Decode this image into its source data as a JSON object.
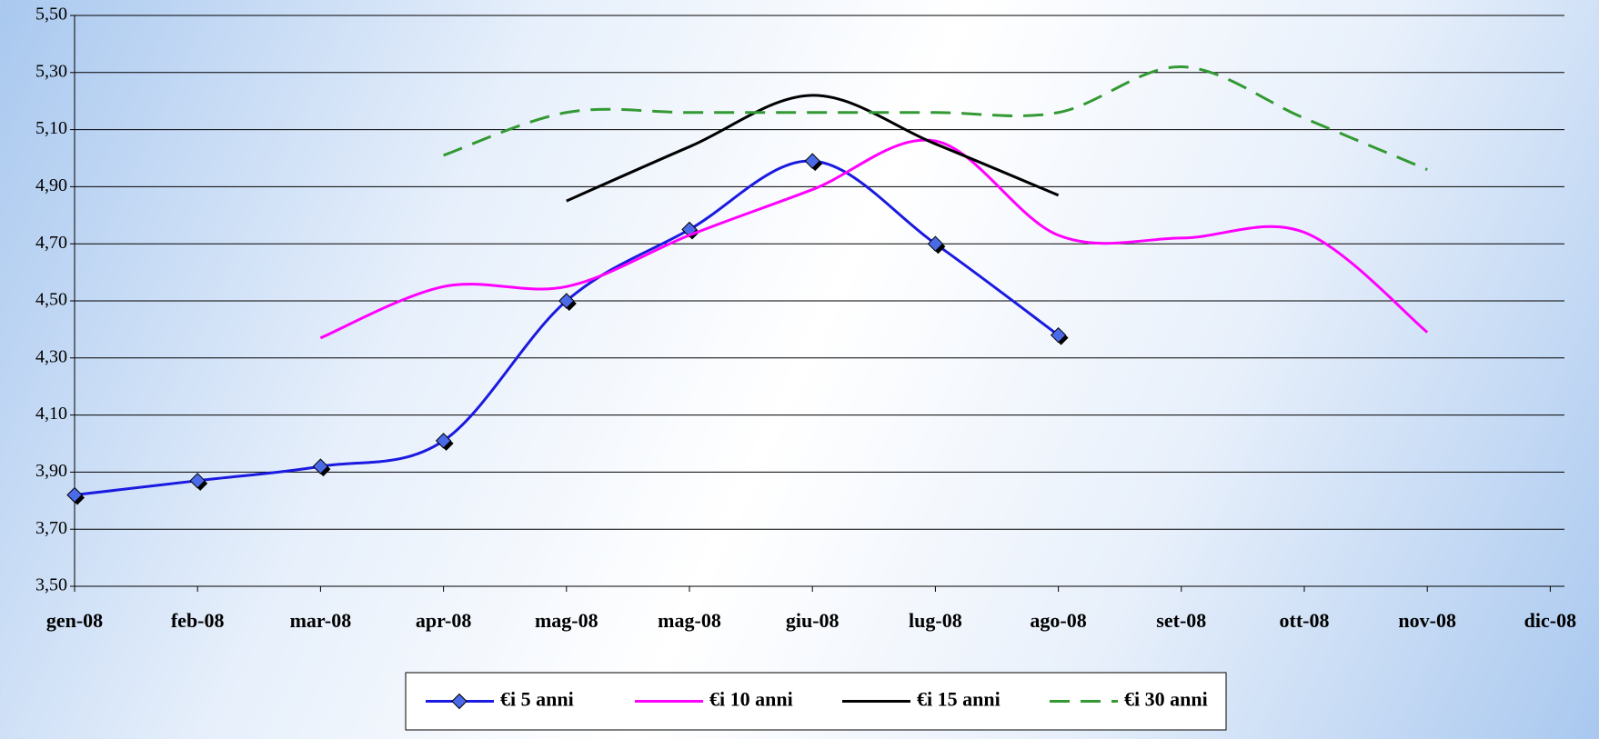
{
  "chart_data": {
    "type": "line",
    "categories": [
      "gen-08",
      "feb-08",
      "mar-08",
      "apr-08",
      "mag-08",
      "mag-08",
      "giu-08",
      "lug-08",
      "ago-08",
      "set-08",
      "ott-08",
      "nov-08",
      "dic-08"
    ],
    "ylim": [
      3.5,
      5.5
    ],
    "yticks": [
      {
        "value": 3.5,
        "label": "3,50"
      },
      {
        "value": 3.7,
        "label": "3,70"
      },
      {
        "value": 3.9,
        "label": "3,90"
      },
      {
        "value": 4.1,
        "label": "4,10"
      },
      {
        "value": 4.3,
        "label": "4,30"
      },
      {
        "value": 4.5,
        "label": "4,50"
      },
      {
        "value": 4.7,
        "label": "4,70"
      },
      {
        "value": 4.9,
        "label": "4,90"
      },
      {
        "value": 5.1,
        "label": "5,10"
      },
      {
        "value": 5.3,
        "label": "5,30"
      },
      {
        "value": 5.5,
        "label": "5,50"
      }
    ],
    "grid": true,
    "legend": "bottom",
    "series": [
      {
        "name": "€i 5 anni",
        "color": "#1a1ae0",
        "marker": "diamond",
        "dashed": false,
        "values": [
          3.82,
          3.87,
          3.92,
          4.01,
          4.5,
          4.75,
          4.99,
          4.7,
          4.38,
          null,
          null,
          null,
          null
        ]
      },
      {
        "name": "€i 10 anni",
        "color": "#ff00ff",
        "marker": "none",
        "dashed": false,
        "values": [
          null,
          null,
          4.37,
          4.55,
          4.55,
          4.73,
          4.89,
          5.06,
          4.73,
          4.72,
          4.74,
          4.39,
          null
        ]
      },
      {
        "name": "€i 15 anni",
        "color": "#000000",
        "marker": "none",
        "dashed": false,
        "values": [
          null,
          null,
          null,
          null,
          4.85,
          5.04,
          5.22,
          5.05,
          4.87,
          null,
          null,
          null,
          null
        ]
      },
      {
        "name": "€i 30 anni",
        "color": "#339933",
        "marker": "none",
        "dashed": true,
        "values": [
          null,
          null,
          null,
          5.01,
          5.16,
          5.16,
          5.16,
          5.16,
          5.16,
          5.32,
          5.14,
          4.96,
          null
        ]
      }
    ]
  }
}
